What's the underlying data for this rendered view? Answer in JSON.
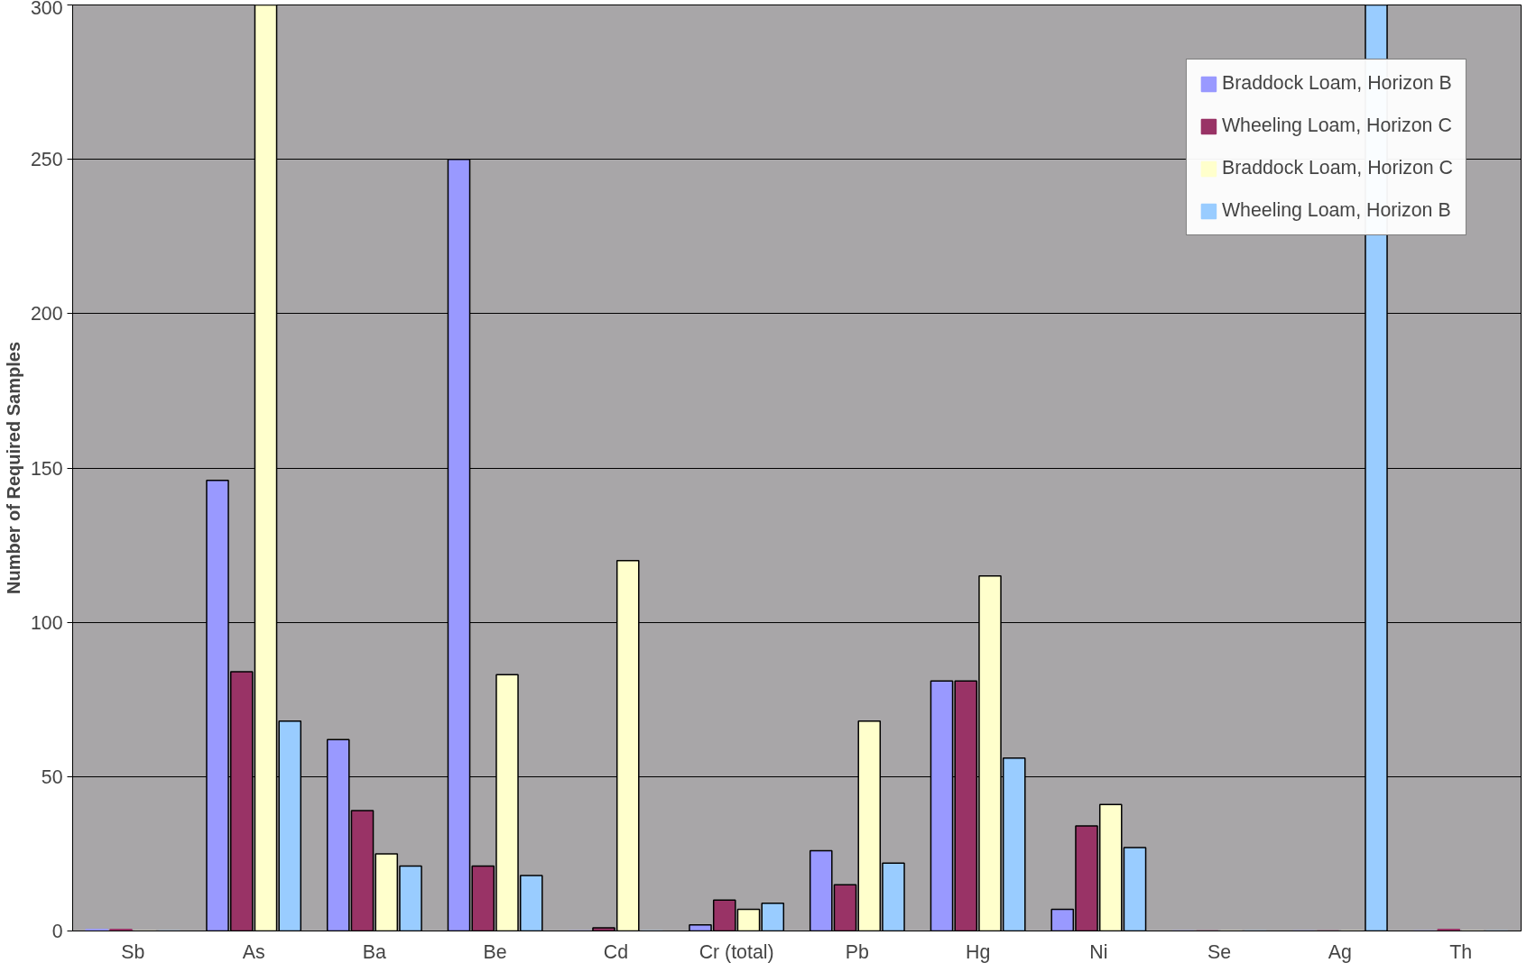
{
  "chart_data": {
    "type": "bar",
    "ylabel": "Number of Required Samples",
    "categories": [
      "Sb",
      "As",
      "Ba",
      "Be",
      "Cd",
      "Cr (total)",
      "Pb",
      "Hg",
      "Ni",
      "Se",
      "Ag",
      "Th"
    ],
    "series": [
      {
        "name": "Braddock Loam, Horizon B",
        "color": "#9999ff",
        "values": [
          0.5,
          146,
          62,
          250,
          0,
          2,
          26,
          81,
          7,
          0,
          0,
          0
        ]
      },
      {
        "name": "Wheeling Loam, Horizon C",
        "color": "#993366",
        "values": [
          0.5,
          84,
          39,
          21,
          1,
          10,
          15,
          81,
          34,
          0,
          0,
          0.5
        ]
      },
      {
        "name": "Braddock Loam, Horizon C",
        "color": "#ffffcc",
        "values": [
          0,
          300,
          25,
          83,
          120,
          7,
          68,
          115,
          41,
          0,
          0,
          0
        ]
      },
      {
        "name": "Wheeling Loam, Horizon B",
        "color": "#99ccff",
        "values": [
          0,
          68,
          21,
          18,
          0,
          9,
          22,
          56,
          27,
          0,
          300,
          0
        ]
      }
    ],
    "ylim": [
      0,
      300
    ],
    "yticks": [
      0,
      50,
      100,
      150,
      200,
      250,
      300
    ],
    "grid": "y",
    "legend": "top right"
  }
}
